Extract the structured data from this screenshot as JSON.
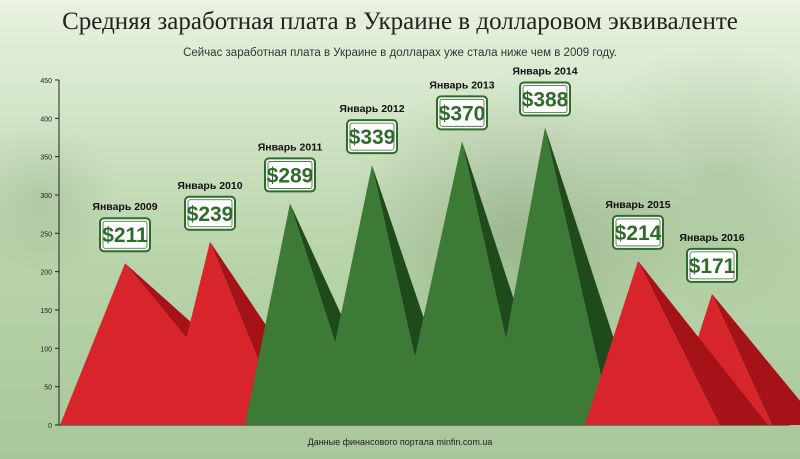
{
  "title": "Средняя заработная плата в Украине в долларовом эквиваленте",
  "subtitle": "Сейчас заработная плата в Украине в долларах уже стала ниже чем в 2009 году.",
  "source": "Данные финансового портала minfin.com.ua",
  "colors": {
    "red": "#d8252c",
    "red_dark": "#a51218",
    "green": "#3c7a36",
    "green_dark": "#1f4a1c",
    "badge_bg": "#ffffff",
    "badge_text": "#2f6b2a"
  },
  "chart_data": {
    "type": "area",
    "ylim": [
      0,
      450
    ],
    "yticks": [
      "0",
      "50",
      "100",
      "150",
      "200",
      "250",
      "300",
      "350",
      "400",
      "450"
    ],
    "categories": [
      "Январь 2009",
      "Январь 2010",
      "Январь 2011",
      "Январь 2012",
      "Январь 2013",
      "Январь 2014",
      "Январь 2015",
      "Январь 2016"
    ],
    "values": [
      211,
      239,
      289,
      339,
      370,
      388,
      214,
      171
    ],
    "labels": [
      "$211",
      "$239",
      "$289",
      "$339",
      "$370",
      "$388",
      "$214",
      "$171"
    ],
    "mark_colors": [
      "red",
      "red",
      "green",
      "green",
      "green",
      "green",
      "red",
      "red"
    ]
  }
}
